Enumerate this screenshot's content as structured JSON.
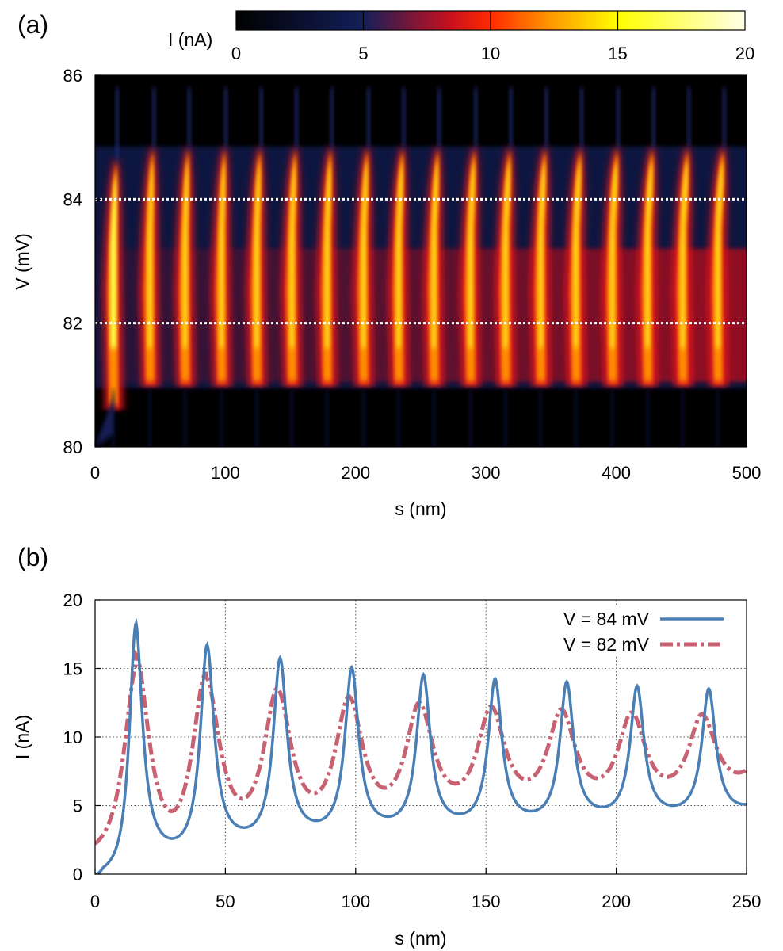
{
  "chart_data": [
    {
      "type": "heatmap",
      "panel_label": "(a)",
      "xlabel": "s (nm)",
      "ylabel": "V (mV)",
      "xlim": [
        0,
        500
      ],
      "ylim": [
        80,
        86
      ],
      "xticks": [
        "0",
        "100",
        "200",
        "300",
        "400",
        "500"
      ],
      "yticks": [
        "80",
        "82",
        "84",
        "86"
      ],
      "colorbar": {
        "label": "I (nA)",
        "range": [
          0,
          20
        ],
        "ticks": [
          "0",
          "5",
          "10",
          "15",
          "20"
        ],
        "colormap": [
          "#000000",
          "#141f5a",
          "#c8101e",
          "#ff2a00",
          "#ff9a00",
          "#ffff00",
          "#ffffe8"
        ]
      },
      "stripe_peaks_s": [
        14,
        42,
        69,
        97,
        124,
        151,
        178,
        206,
        233,
        260,
        288,
        315,
        342,
        369,
        397,
        424,
        451,
        478
      ],
      "band_lower_V": 81.0,
      "band_upper_V": 84.8,
      "dashed_lines_V": [
        84,
        82
      ],
      "dashed_line_color": "#ffffff"
    },
    {
      "type": "line",
      "panel_label": "(b)",
      "xlabel": "s (nm)",
      "ylabel": "I (nA)",
      "xlim": [
        0,
        250
      ],
      "ylim": [
        0,
        20
      ],
      "xticks": [
        "0",
        "50",
        "100",
        "150",
        "200",
        "250"
      ],
      "yticks": [
        "0",
        "5",
        "10",
        "15",
        "20"
      ],
      "grid": true,
      "legend_position": "top-right",
      "series": [
        {
          "name": "V = 84 mV",
          "color": "#4a7fb5",
          "style": "solid",
          "peaks": [
            [
              15.5,
              18.2
            ],
            [
              43,
              16.5
            ],
            [
              71,
              15.6
            ],
            [
              98.5,
              14.9
            ],
            [
              126,
              14.4
            ],
            [
              153.5,
              14.1
            ],
            [
              181,
              13.9
            ],
            [
              208,
              13.6
            ],
            [
              235.5,
              13.4
            ]
          ],
          "minima": [
            [
              29.5,
              2.6
            ],
            [
              57,
              3.4
            ],
            [
              84.5,
              3.9
            ],
            [
              112,
              4.2
            ],
            [
              139.5,
              4.4
            ],
            [
              167,
              4.6
            ],
            [
              194,
              4.9
            ],
            [
              221.5,
              5.0
            ],
            [
              250,
              5.1
            ]
          ],
          "start": [
            0,
            0
          ],
          "peak_width": 3.2
        },
        {
          "name": "V = 82 mV",
          "color": "#c86272",
          "style": "dash-dot",
          "peaks": [
            [
              15.5,
              15.2
            ],
            [
              42.5,
              13.7
            ],
            [
              70,
              12.9
            ],
            [
              97.5,
              12.4
            ],
            [
              124.5,
              12.0
            ],
            [
              152,
              11.8
            ],
            [
              179,
              11.6
            ],
            [
              206,
              11.4
            ],
            [
              233,
              11.3
            ]
          ],
          "minima": [
            [
              29,
              4.6
            ],
            [
              56.5,
              5.5
            ],
            [
              84,
              5.9
            ],
            [
              111.5,
              6.3
            ],
            [
              138.5,
              6.6
            ],
            [
              165.5,
              6.9
            ],
            [
              193,
              7.0
            ],
            [
              220,
              7.1
            ],
            [
              247,
              7.4
            ]
          ],
          "start": [
            0,
            1.6
          ],
          "peak_width": 6.5
        }
      ]
    }
  ]
}
